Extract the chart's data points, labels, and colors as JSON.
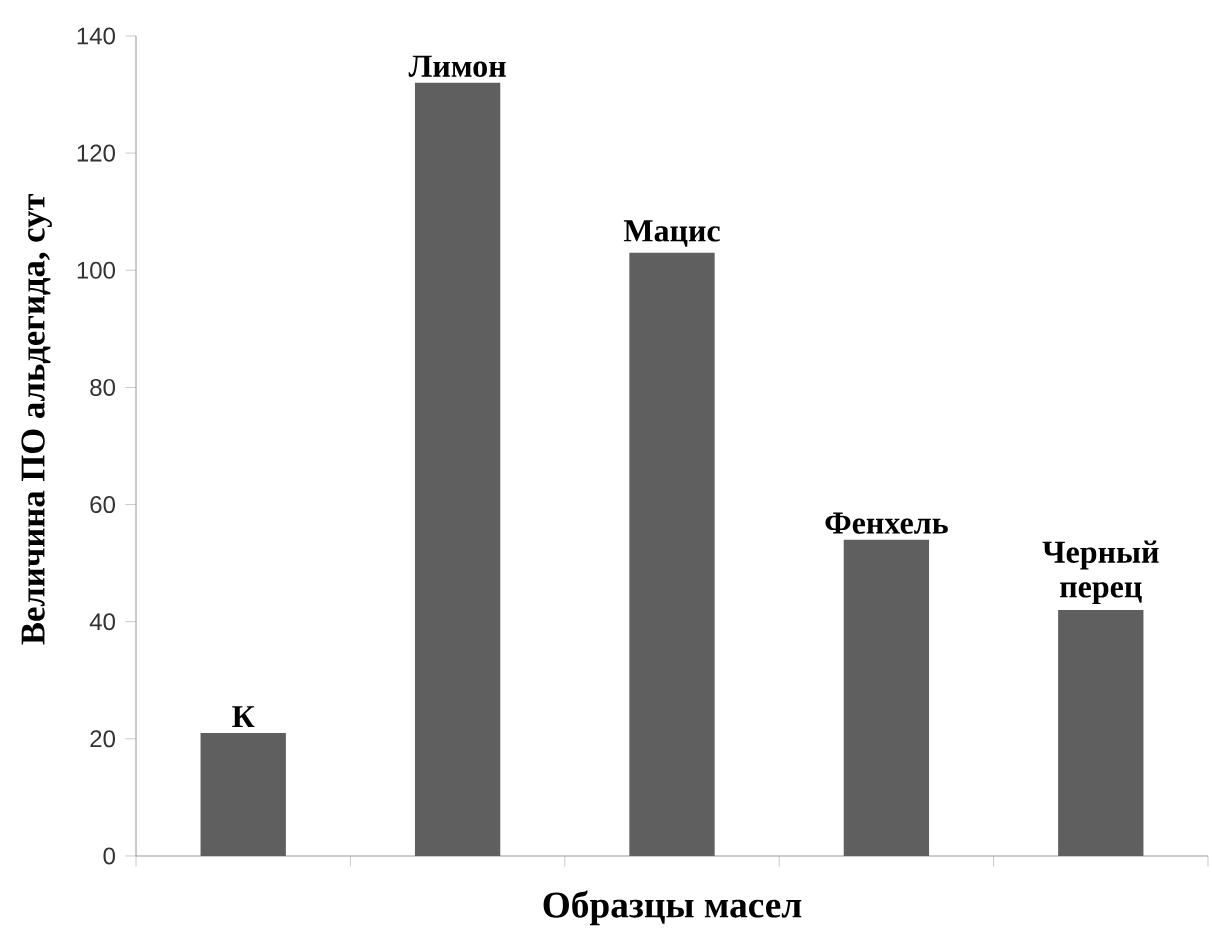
{
  "chart_data": {
    "type": "bar",
    "categories": [
      "К",
      "Лимон",
      "Мацис",
      "Фенхель",
      "Черный перец"
    ],
    "values": [
      21,
      132,
      103,
      54,
      42
    ],
    "color": "#5f5f5f",
    "xlabel": "Образцы масел",
    "ylabel": "Величина ПО альдегида, сут",
    "ylim": [
      0,
      140
    ],
    "yticks": [
      0,
      20,
      40,
      60,
      80,
      100,
      120,
      140
    ]
  }
}
